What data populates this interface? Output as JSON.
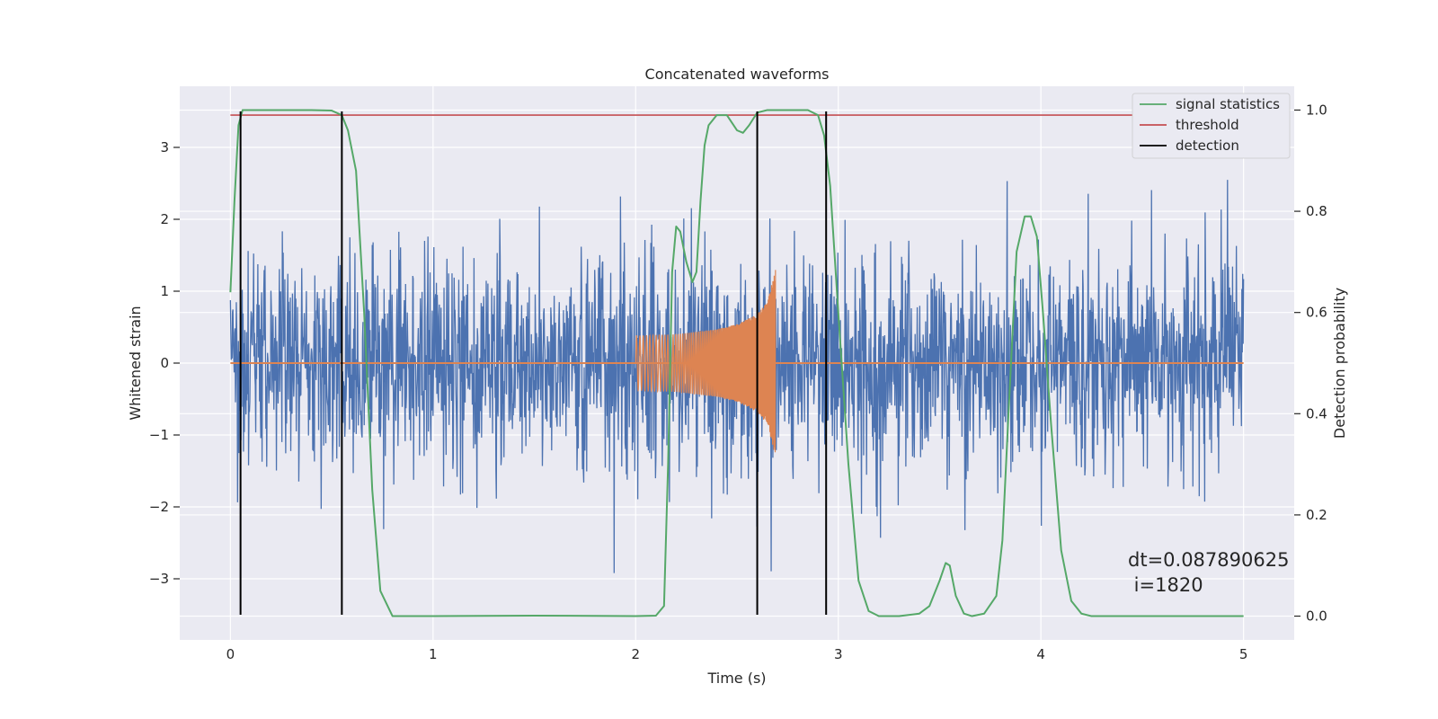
{
  "chart_data": {
    "type": "line",
    "title": "Concatenated waveforms",
    "xlabel": "Time (s)",
    "ylabel": "Whitened strain",
    "y2label": "Detection probability",
    "xlim": [
      -0.25,
      5.25
    ],
    "ylim": [
      -3.85,
      3.85
    ],
    "y2lim": [
      -0.047,
      1.047
    ],
    "x_ticks": [
      0,
      1,
      2,
      3,
      4,
      5
    ],
    "y_ticks": [
      -3,
      -2,
      -1,
      0,
      1,
      2,
      3
    ],
    "y_tick_labels": [
      "−3",
      "−2",
      "−1",
      "0",
      "1",
      "2",
      "3"
    ],
    "y2_ticks": [
      0.0,
      0.2,
      0.4,
      0.6,
      0.8,
      1.0
    ],
    "y2_tick_labels": [
      "0.0",
      "0.2",
      "0.4",
      "0.6",
      "0.8",
      "1.0"
    ],
    "grid": true,
    "legend_position": "top-right",
    "colors": {
      "strain": "#4c72b0",
      "injected_waveform": "#dd8452",
      "signal_statistics": "#55a868",
      "threshold": "#c44e52",
      "detection": "#000000",
      "plot_background": "#eaeaf2",
      "grid": "#ffffff"
    },
    "series": [
      {
        "name": "signal statistics",
        "axis": "right",
        "x": [
          0.0,
          0.02,
          0.04,
          0.06,
          0.1,
          0.2,
          0.4,
          0.5,
          0.55,
          0.58,
          0.62,
          0.66,
          0.7,
          0.74,
          0.8,
          1.0,
          1.5,
          2.0,
          2.1,
          2.14,
          2.16,
          2.18,
          2.2,
          2.22,
          2.25,
          2.28,
          2.3,
          2.32,
          2.34,
          2.36,
          2.4,
          2.45,
          2.5,
          2.53,
          2.56,
          2.6,
          2.65,
          2.75,
          2.85,
          2.9,
          2.93,
          2.96,
          3.0,
          3.05,
          3.1,
          3.15,
          3.2,
          3.3,
          3.4,
          3.45,
          3.5,
          3.53,
          3.55,
          3.58,
          3.62,
          3.66,
          3.72,
          3.78,
          3.81,
          3.84,
          3.88,
          3.92,
          3.95,
          3.98,
          4.01,
          4.05,
          4.1,
          4.15,
          4.2,
          4.25,
          4.4,
          4.6,
          4.8,
          5.0
        ],
        "y": [
          0.64,
          0.82,
          0.97,
          1.0,
          1.0,
          1.0,
          1.0,
          0.999,
          0.99,
          0.96,
          0.88,
          0.6,
          0.25,
          0.05,
          0.0,
          0.0,
          0.001,
          0.0,
          0.001,
          0.02,
          0.3,
          0.68,
          0.77,
          0.76,
          0.7,
          0.66,
          0.68,
          0.82,
          0.93,
          0.97,
          0.99,
          0.99,
          0.96,
          0.955,
          0.97,
          0.995,
          1.0,
          1.0,
          1.0,
          0.99,
          0.95,
          0.85,
          0.6,
          0.3,
          0.07,
          0.01,
          0.0,
          0.0,
          0.005,
          0.02,
          0.07,
          0.105,
          0.1,
          0.04,
          0.005,
          0.0,
          0.005,
          0.04,
          0.15,
          0.4,
          0.72,
          0.79,
          0.79,
          0.75,
          0.6,
          0.38,
          0.13,
          0.03,
          0.005,
          0.0,
          0.0,
          0.0,
          0.0,
          0.0
        ]
      },
      {
        "name": "threshold",
        "axis": "right",
        "x": [
          0.0,
          5.0
        ],
        "y": [
          0.99,
          0.99
        ]
      },
      {
        "name": "detection",
        "axis": "left",
        "type": "vlines",
        "x": [
          0.05,
          0.55,
          2.6,
          2.94
        ],
        "ymin": -3.5,
        "ymax": 3.5
      },
      {
        "name": "",
        "axis": "left",
        "role": "whitened strain (noise + signal)",
        "x_range": [
          0.0,
          5.0
        ],
        "amplitude_sigma": 0.72,
        "max_abs": 3.5
      },
      {
        "name": "",
        "axis": "left",
        "role": "injected waveform (chirp)",
        "x_range": [
          2.0,
          2.69
        ],
        "envelope_x": [
          2.0,
          2.2,
          2.4,
          2.5,
          2.6,
          2.65,
          2.69
        ],
        "envelope_y": [
          0.38,
          0.4,
          0.47,
          0.54,
          0.68,
          0.85,
          1.3
        ],
        "zero_tail_x": [
          0.0,
          5.0
        ],
        "zero_tail_y": [
          0.0,
          0.0
        ]
      }
    ],
    "annotation": {
      "line1": "dt=0.087890625",
      "line2": " i=1820"
    }
  }
}
